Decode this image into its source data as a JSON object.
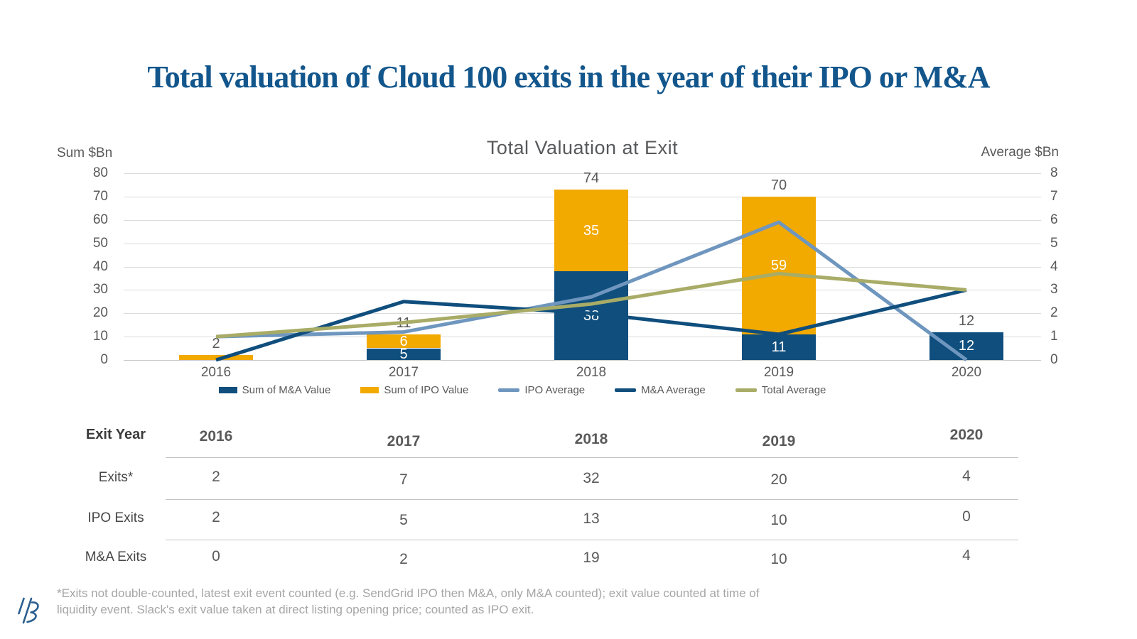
{
  "page": {
    "title": "Total valuation of Cloud 100 exits in the year of their IPO or M&A"
  },
  "chart": {
    "title": "Total Valuation at Exit",
    "left_axis_label": "Sum $Bn",
    "right_axis_label": "Average $Bn"
  },
  "chart_data": {
    "type": "bar",
    "subtype": "stacked-bar-with-lines",
    "title": "Total Valuation at Exit",
    "categories": [
      "2016",
      "2017",
      "2018",
      "2019",
      "2020"
    ],
    "left_axis": {
      "label": "Sum $Bn",
      "ticks": [
        0,
        10,
        20,
        30,
        40,
        50,
        60,
        70,
        80
      ],
      "ylim": [
        0,
        80
      ]
    },
    "right_axis": {
      "label": "Average $Bn",
      "ticks": [
        0,
        1,
        2,
        3,
        4,
        5,
        6,
        7,
        8
      ],
      "ylim": [
        0,
        8
      ]
    },
    "grid": "horizontal",
    "legend_position": "bottom",
    "bar_series": [
      {
        "name": "Sum of M&A Value",
        "color": "#0F4E7D",
        "axis": "left",
        "values": [
          0,
          5,
          38,
          11,
          12
        ],
        "segment_labels": [
          "",
          "5",
          "38",
          "11",
          "12"
        ]
      },
      {
        "name": "Sum of IPO Value",
        "color": "#F2A900",
        "axis": "left",
        "values": [
          2,
          6,
          35,
          59,
          0
        ],
        "segment_labels": [
          "",
          "6",
          "35",
          "59",
          ""
        ]
      }
    ],
    "bar_total_labels": [
      "2",
      "11",
      "74",
      "70",
      "12"
    ],
    "line_series": [
      {
        "name": "IPO Average",
        "color": "#6E96BE",
        "axis": "right",
        "values": [
          1.0,
          1.2,
          2.7,
          5.9,
          0.0
        ]
      },
      {
        "name": "M&A Average",
        "color": "#0F4E7D",
        "axis": "right",
        "values": [
          0.0,
          2.5,
          2.0,
          1.1,
          3.0
        ]
      },
      {
        "name": "Total Average",
        "color": "#A8AC66",
        "axis": "right",
        "values": [
          1.0,
          1.6,
          2.4,
          3.7,
          3.0
        ]
      }
    ]
  },
  "table": {
    "corner_label": "Exit Year",
    "columns": [
      "2016",
      "2017",
      "2018",
      "2019",
      "2020"
    ],
    "rows": [
      {
        "label": "Exits*",
        "values": [
          "2",
          "7",
          "32",
          "20",
          "4"
        ]
      },
      {
        "label": "IPO Exits",
        "values": [
          "2",
          "5",
          "13",
          "10",
          "0"
        ]
      },
      {
        "label": "M&A Exits",
        "values": [
          "0",
          "2",
          "19",
          "10",
          "4"
        ]
      }
    ]
  },
  "footnote": "*Exits not double-counted, latest exit event counted (e.g. SendGrid IPO then M&A, only M&A counted); exit value counted at time of liquidity event. Slack's exit value taken at direct listing opening price; counted as IPO exit.",
  "colors": {
    "title_blue": "#12568C",
    "bar_mna": "#0F4E7D",
    "bar_ipo": "#F2A900",
    "line_ipo_avg": "#6E96BE",
    "line_mna_avg": "#0F4E7D",
    "line_total_avg": "#A8AC66",
    "grid": "#DCDCDC",
    "axis_text": "#595959",
    "footnote_text": "#A6A6A6",
    "logo_blue": "#2A5E8F"
  },
  "icons": {
    "logo": "bvp-slashes-logo"
  }
}
